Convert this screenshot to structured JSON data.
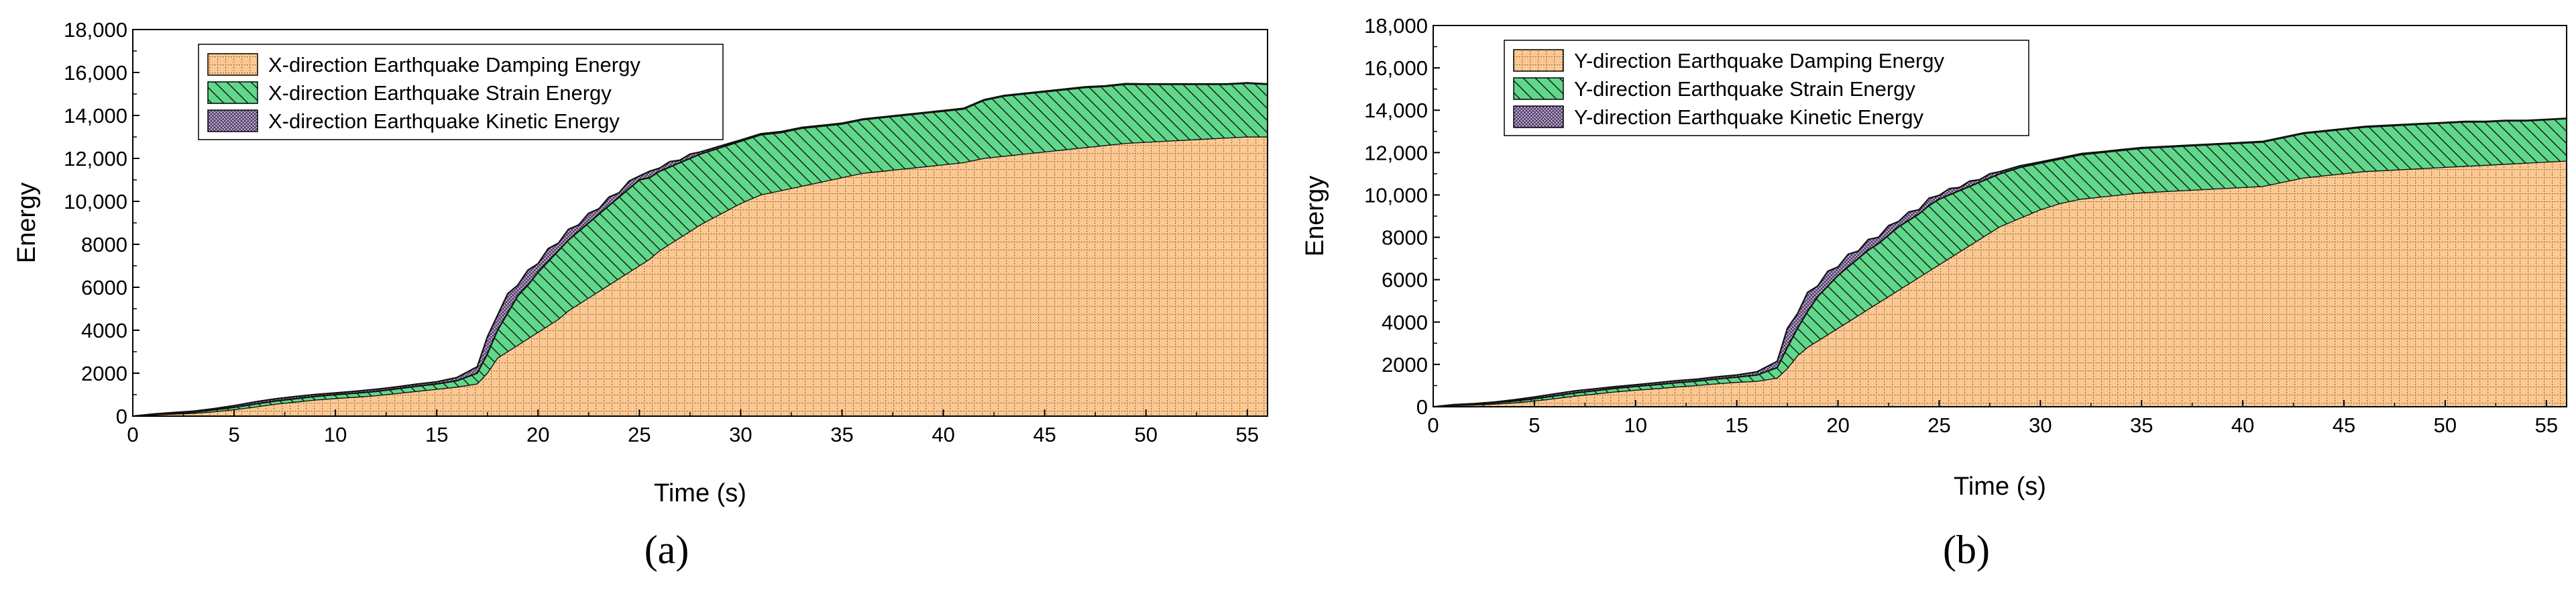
{
  "chart_data": [
    {
      "type": "area",
      "stacked": true,
      "panel_label": "(a)",
      "xlabel": "Time (s)",
      "ylabel": "Energy",
      "xlim": [
        0,
        56
      ],
      "ylim": [
        0,
        18000
      ],
      "xticks": [
        "0",
        "5",
        "10",
        "15",
        "20",
        "25",
        "30",
        "35",
        "40",
        "45",
        "50",
        "55"
      ],
      "yticks": [
        "0",
        "2000",
        "4000",
        "6000",
        "8000",
        "10,000",
        "12,000",
        "14,000",
        "16,000",
        "18,000"
      ],
      "grid": false,
      "legend_position": "top-left",
      "x": [
        0,
        1,
        2,
        3,
        4,
        5,
        6,
        7,
        8,
        9,
        10,
        11,
        12,
        13,
        14,
        15,
        16,
        17,
        17.5,
        18,
        18.5,
        19,
        19.5,
        20,
        20.5,
        21,
        21.5,
        22,
        22.5,
        23,
        23.5,
        24,
        24.5,
        25,
        25.5,
        26,
        26.5,
        27,
        27.5,
        28,
        29,
        30,
        31,
        32,
        33,
        34,
        35,
        36,
        37,
        38,
        39,
        40,
        41,
        42,
        43,
        44,
        45,
        46,
        47,
        48,
        49,
        50,
        51,
        52,
        53,
        54,
        55,
        56
      ],
      "series": [
        {
          "name": "X-direction Earthquake Damping Energy",
          "fill": "#fcc992",
          "values": [
            0,
            50,
            90,
            130,
            200,
            300,
            420,
            550,
            650,
            750,
            820,
            880,
            950,
            1050,
            1150,
            1250,
            1350,
            1500,
            2000,
            2700,
            3000,
            3300,
            3600,
            3900,
            4200,
            4500,
            4900,
            5200,
            5500,
            5800,
            6100,
            6400,
            6700,
            7000,
            7300,
            7700,
            8000,
            8300,
            8600,
            8900,
            9400,
            9900,
            10300,
            10500,
            10700,
            10900,
            11100,
            11300,
            11400,
            11500,
            11600,
            11700,
            11800,
            12000,
            12100,
            12200,
            12300,
            12400,
            12500,
            12600,
            12700,
            12750,
            12800,
            12850,
            12900,
            12950,
            13000,
            13000
          ]
        },
        {
          "name": "X-direction Earthquake Strain Energy",
          "fill": "#5fd88a",
          "values": [
            0,
            30,
            40,
            60,
            90,
            110,
            140,
            150,
            160,
            170,
            180,
            190,
            200,
            220,
            240,
            250,
            300,
            500,
            900,
            1300,
            1800,
            2300,
            2500,
            2800,
            3000,
            3200,
            3300,
            3400,
            3500,
            3600,
            3700,
            3800,
            3900,
            4000,
            3800,
            3700,
            3600,
            3500,
            3400,
            3300,
            3100,
            2900,
            2800,
            2700,
            2700,
            2600,
            2500,
            2500,
            2500,
            2500,
            2500,
            2500,
            2500,
            2700,
            2800,
            2800,
            2800,
            2800,
            2800,
            2750,
            2750,
            2700,
            2650,
            2600,
            2550,
            2500,
            2500,
            2450
          ]
        },
        {
          "name": "X-direction Earthquake Kinetic Energy",
          "fill": "#c8b6d8",
          "values": [
            0,
            20,
            40,
            40,
            60,
            80,
            100,
            100,
            100,
            90,
            80,
            90,
            100,
            90,
            100,
            100,
            150,
            300,
            800,
            700,
            900,
            500,
            700,
            400,
            600,
            350,
            500,
            300,
            450,
            250,
            400,
            200,
            350,
            180,
            300,
            150,
            250,
            120,
            200,
            100,
            80,
            60,
            50,
            50,
            40,
            40,
            40,
            30,
            30,
            30,
            30,
            30,
            30,
            30,
            30,
            30,
            30,
            30,
            30,
            30,
            30,
            20,
            20,
            20,
            20,
            20,
            20,
            20
          ]
        }
      ]
    },
    {
      "type": "area",
      "stacked": true,
      "panel_label": "(b)",
      "xlabel": "Time (s)",
      "ylabel": "Energy",
      "xlim": [
        0,
        56
      ],
      "ylim": [
        0,
        18000
      ],
      "xticks": [
        "0",
        "5",
        "10",
        "15",
        "20",
        "25",
        "30",
        "35",
        "40",
        "45",
        "50",
        "55"
      ],
      "yticks": [
        "0",
        "2000",
        "4000",
        "6000",
        "8000",
        "10,000",
        "12,000",
        "14,000",
        "16,000",
        "18,000"
      ],
      "grid": false,
      "legend_position": "top-left",
      "x": [
        0,
        1,
        2,
        3,
        4,
        5,
        6,
        7,
        8,
        9,
        10,
        11,
        12,
        13,
        14,
        15,
        16,
        17,
        17.5,
        18,
        18.5,
        19,
        19.5,
        20,
        20.5,
        21,
        21.5,
        22,
        22.5,
        23,
        23.5,
        24,
        24.5,
        25,
        25.5,
        26,
        26.5,
        27,
        27.5,
        28,
        29,
        30,
        31,
        32,
        33,
        34,
        35,
        36,
        37,
        38,
        39,
        40,
        41,
        42,
        43,
        44,
        45,
        46,
        47,
        48,
        49,
        50,
        51,
        52,
        53,
        54,
        55,
        56
      ],
      "series": [
        {
          "name": "Y-direction Earthquake Damping Energy",
          "fill": "#fcc992",
          "values": [
            0,
            50,
            80,
            120,
            180,
            270,
            380,
            500,
            600,
            700,
            780,
            850,
            930,
            1000,
            1080,
            1150,
            1200,
            1350,
            1800,
            2400,
            2800,
            3100,
            3400,
            3700,
            4000,
            4300,
            4600,
            4900,
            5200,
            5500,
            5800,
            6100,
            6400,
            6700,
            7000,
            7300,
            7600,
            7900,
            8200,
            8500,
            8900,
            9300,
            9600,
            9800,
            9900,
            10000,
            10100,
            10150,
            10200,
            10250,
            10300,
            10350,
            10400,
            10600,
            10800,
            10900,
            11000,
            11100,
            11150,
            11200,
            11250,
            11300,
            11350,
            11400,
            11450,
            11500,
            11550,
            11600
          ]
        },
        {
          "name": "Y-direction Earthquake Strain Energy",
          "fill": "#5fd88a",
          "values": [
            0,
            30,
            40,
            60,
            90,
            110,
            130,
            150,
            160,
            170,
            180,
            190,
            200,
            210,
            230,
            250,
            300,
            500,
            1000,
            1300,
            1700,
            2100,
            2300,
            2500,
            2600,
            2700,
            2800,
            2800,
            2900,
            3000,
            3000,
            3000,
            3100,
            3100,
            3000,
            2900,
            2800,
            2700,
            2600,
            2500,
            2400,
            2200,
            2100,
            2100,
            2100,
            2100,
            2100,
            2100,
            2100,
            2100,
            2100,
            2100,
            2100,
            2100,
            2100,
            2100,
            2100,
            2100,
            2100,
            2100,
            2100,
            2100,
            2100,
            2050,
            2050,
            2000,
            2000,
            2000
          ]
        },
        {
          "name": "Y-direction Earthquake Kinetic Energy",
          "fill": "#c8b6d8",
          "values": [
            0,
            20,
            30,
            40,
            60,
            80,
            100,
            100,
            90,
            80,
            80,
            90,
            100,
            90,
            100,
            100,
            150,
            300,
            900,
            700,
            900,
            500,
            700,
            400,
            600,
            350,
            500,
            300,
            450,
            250,
            400,
            200,
            350,
            180,
            300,
            150,
            250,
            120,
            200,
            100,
            80,
            60,
            50,
            50,
            40,
            40,
            40,
            30,
            30,
            30,
            30,
            30,
            30,
            30,
            30,
            30,
            30,
            30,
            30,
            30,
            30,
            20,
            20,
            20,
            20,
            20,
            20,
            20
          ]
        }
      ]
    }
  ]
}
